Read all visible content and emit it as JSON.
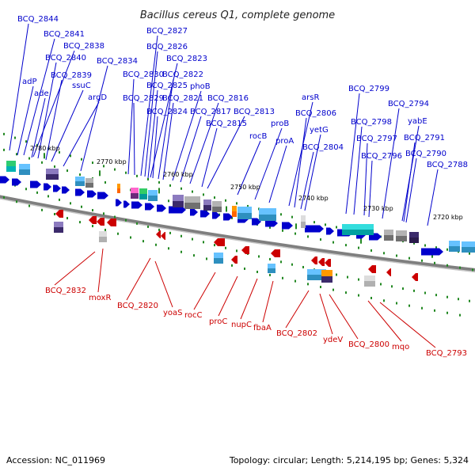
{
  "title": "Bacillus cereus Q1, complete genome",
  "footer": {
    "accession": "Accession: NC_011969",
    "summary": "Topology: circular; Length: 5,214,195 bp; Genes: 5,324"
  },
  "colors": {
    "forward": "#0000cc",
    "reverse": "#cc0000",
    "backbone": "#808080",
    "tick": "#228822"
  },
  "scale_labels": [
    "2780 kbp",
    "2770 kbp",
    "2760 kbp",
    "2750 kbp",
    "2740 kbp",
    "2730 kbp",
    "2720 kbp"
  ],
  "forward_genes": [
    "BCQ_2844",
    "BCQ_2841",
    "BCQ_2838",
    "BCQ_2840",
    "adP",
    "BCQ_2839",
    "ade",
    "ssuC",
    "argD",
    "BCQ_2834",
    "BCQ_2827",
    "BCQ_2826",
    "BCQ_2823",
    "BCQ_2830",
    "BCQ_2822",
    "BCQ_2825",
    "phoB",
    "BCQ_2829",
    "BCQ_2821",
    "BCQ_2816",
    "BCQ_2824",
    "BCQ_2817",
    "BCQ_2813",
    "BCQ_2815",
    "rocB",
    "proB",
    "proA",
    "arsR",
    "BCQ_2806",
    "yetG",
    "BCQ_2804",
    "BCQ_2799",
    "BCQ_2794",
    "BCQ_2798",
    "yabE",
    "BCQ_2797",
    "BCQ_2791",
    "BCQ_2796",
    "BCQ_2790",
    "BCQ_2788"
  ],
  "reverse_genes": [
    "BCQ_2832",
    "moxR",
    "BCQ_2820",
    "yoaS",
    "rocC",
    "proC",
    "nupC",
    "fbaA",
    "BCQ_2802",
    "ydeV",
    "BCQ_2800",
    "mqo",
    "BCQ_2793"
  ]
}
